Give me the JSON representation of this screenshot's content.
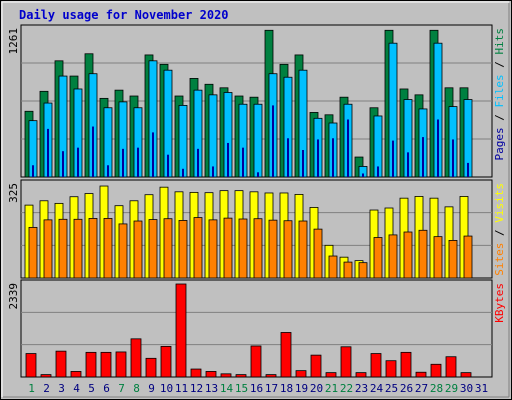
{
  "title": "Daily usage for November 2020",
  "colors": {
    "background": "#c0c0c0",
    "title": "#0000cc",
    "hits": "#008040",
    "files": "#00c0ff",
    "pages": "#0000a0",
    "visits": "#ffff00",
    "sites": "#ff8000",
    "kbytes": "#ff0000",
    "weekend_label": "#008040",
    "day_label": "#000080"
  },
  "chart_data": [
    {
      "type": "bar",
      "name": "hits-files-pages",
      "ymax_label": "1261",
      "ylim": [
        0,
        1261
      ],
      "legend": [
        "Pages",
        "Files",
        "Hits"
      ],
      "series": [
        {
          "name": "Hits",
          "values": [
            560,
            730,
            990,
            860,
            1050,
            670,
            740,
            690,
            1040,
            960,
            690,
            840,
            790,
            760,
            690,
            680,
            1250,
            960,
            1040,
            550,
            530,
            680,
            170,
            590,
            1250,
            750,
            700,
            1250,
            760,
            760,
            0
          ]
        },
        {
          "name": "Files",
          "values": [
            480,
            630,
            860,
            750,
            880,
            590,
            640,
            590,
            990,
            910,
            610,
            740,
            700,
            720,
            620,
            620,
            880,
            850,
            910,
            500,
            460,
            620,
            90,
            520,
            1140,
            660,
            580,
            1140,
            600,
            660,
            0
          ]
        },
        {
          "name": "Pages",
          "values": [
            100,
            410,
            220,
            250,
            430,
            100,
            240,
            250,
            380,
            190,
            70,
            240,
            90,
            290,
            250,
            40,
            610,
            330,
            230,
            320,
            330,
            490,
            30,
            90,
            310,
            210,
            340,
            490,
            320,
            120,
            0
          ]
        }
      ]
    },
    {
      "type": "bar",
      "name": "visits-sites",
      "ymax_label": "325",
      "ylim": [
        0,
        325
      ],
      "legend": [
        "Sites",
        "Visits"
      ],
      "series": [
        {
          "name": "Visits",
          "values": [
            252,
            267,
            258,
            281,
            292,
            318,
            250,
            267,
            288,
            314,
            298,
            296,
            295,
            302,
            302,
            298,
            294,
            294,
            289,
            244,
            113,
            72,
            60,
            235,
            242,
            276,
            282,
            276,
            246,
            282,
            0
          ]
        },
        {
          "name": "Sites",
          "values": [
            175,
            201,
            203,
            203,
            206,
            206,
            187,
            197,
            202,
            205,
            199,
            209,
            201,
            207,
            204,
            205,
            200,
            198,
            197,
            169,
            76,
            55,
            53,
            140,
            149,
            159,
            165,
            143,
            130,
            145,
            0
          ]
        }
      ]
    },
    {
      "type": "bar",
      "name": "kbytes",
      "ymax_label": "2339",
      "ylim": [
        0,
        2339
      ],
      "legend": [
        "KBytes"
      ],
      "series": [
        {
          "name": "KBytes",
          "values": [
            590,
            60,
            650,
            140,
            620,
            620,
            630,
            960,
            470,
            770,
            2339,
            200,
            140,
            80,
            60,
            780,
            60,
            1120,
            160,
            550,
            110,
            760,
            110,
            590,
            410,
            620,
            120,
            320,
            510,
            110,
            0
          ]
        }
      ]
    }
  ],
  "days": [
    "1",
    "2",
    "3",
    "4",
    "5",
    "6",
    "7",
    "8",
    "9",
    "10",
    "11",
    "12",
    "13",
    "14",
    "15",
    "16",
    "17",
    "18",
    "19",
    "20",
    "21",
    "22",
    "23",
    "24",
    "25",
    "26",
    "27",
    "28",
    "29",
    "30",
    "31"
  ],
  "weekend_days": [
    1,
    7,
    8,
    14,
    15,
    21,
    22,
    28,
    29
  ]
}
